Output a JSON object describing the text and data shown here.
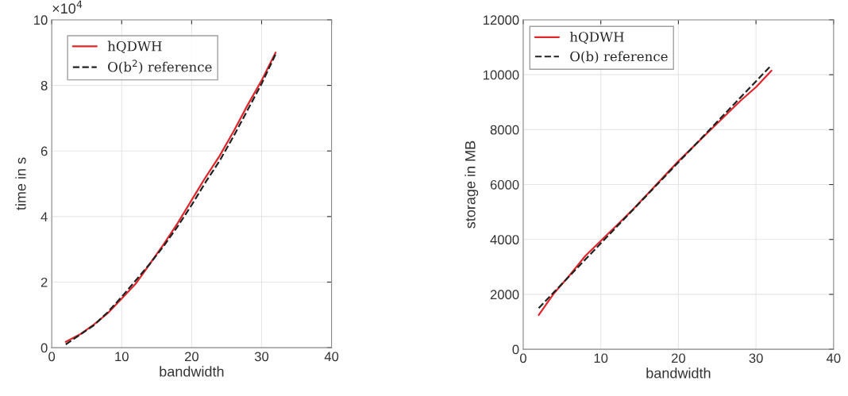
{
  "chart_data": [
    {
      "type": "line",
      "xlabel": "bandwidth",
      "ylabel": "time in s",
      "annotations": [
        "×10$^{4}$"
      ],
      "x": [
        2,
        4,
        6,
        8,
        10,
        12,
        14,
        16,
        18,
        20,
        22,
        24,
        26,
        28,
        30,
        32
      ],
      "series": [
        {
          "name": "hQDWH",
          "color": "#e0262a",
          "line_style": "solid",
          "values": [
            0.18,
            0.4,
            0.7,
            1.05,
            1.5,
            1.95,
            2.55,
            3.15,
            3.8,
            4.5,
            5.2,
            5.85,
            6.6,
            7.4,
            8.15,
            9.0
          ]
        },
        {
          "name": "O(b$^{2}$) reference",
          "color": "#222222",
          "line_style": "dashed",
          "values": [
            0.1,
            0.39,
            0.68,
            1.08,
            1.55,
            2.05,
            2.55,
            3.1,
            3.7,
            4.35,
            5.05,
            5.7,
            6.45,
            7.25,
            8.05,
            8.95
          ]
        }
      ],
      "xlim": [
        0,
        40
      ],
      "xticks": [
        0,
        10,
        20,
        30,
        40
      ],
      "ylim": [
        0,
        10
      ],
      "yticks": [
        0,
        2,
        4,
        6,
        8,
        10
      ],
      "grid": true,
      "legend": "top left"
    },
    {
      "type": "line",
      "xlabel": "bandwidth",
      "ylabel": "storage in MB",
      "x": [
        2,
        4,
        6,
        8,
        10,
        12,
        14,
        16,
        18,
        20,
        22,
        24,
        26,
        28,
        30,
        32
      ],
      "series": [
        {
          "name": "hQDWH",
          "color": "#e0262a",
          "line_style": "solid",
          "values": [
            1250,
            2050,
            2700,
            3400,
            3950,
            4500,
            5050,
            5650,
            6250,
            6850,
            7400,
            7950,
            8500,
            9050,
            9550,
            10150
          ]
        },
        {
          "name": "O(b) reference",
          "color": "#222222",
          "line_style": "dashed",
          "values": [
            1500,
            2090,
            2680,
            3270,
            3860,
            4450,
            5040,
            5630,
            6220,
            6810,
            7400,
            7990,
            8580,
            9170,
            9760,
            10350
          ]
        }
      ],
      "xlim": [
        0,
        40
      ],
      "xticks": [
        0,
        10,
        20,
        30,
        40
      ],
      "ylim": [
        0,
        12000
      ],
      "yticks": [
        0,
        2000,
        4000,
        6000,
        8000,
        10000,
        12000
      ],
      "grid": true,
      "legend": "top left"
    }
  ]
}
